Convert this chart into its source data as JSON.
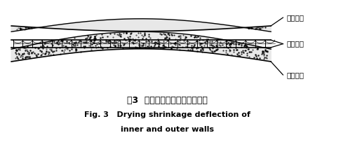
{
  "background_color": "#ffffff",
  "title_zh": "图3  内外叶墙干燥收缩变形示意",
  "title_en_line1": "Fig. 3   Drying shrinkage deflection of",
  "title_en_line2": "inner and outer walls",
  "label_top": "迅速干燥",
  "label_middle": "缓慢干燥",
  "label_bottom": "迅速干燥"
}
